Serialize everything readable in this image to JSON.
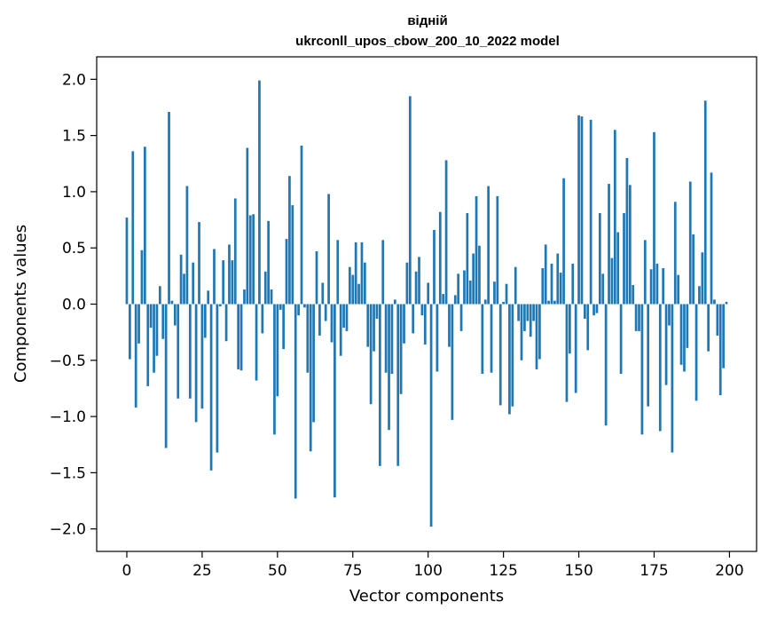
{
  "chart_data": {
    "type": "bar",
    "title": "відній",
    "subtitle": "ukrconll_upos_cbow_200_10_2022 model",
    "xlabel": "Vector components",
    "ylabel": "Components values",
    "xlim": [
      -10,
      209
    ],
    "ylim": [
      -2.2,
      2.2
    ],
    "xticks": [
      0,
      25,
      50,
      75,
      100,
      125,
      150,
      175,
      200
    ],
    "xtick_labels": [
      "0",
      "25",
      "50",
      "75",
      "100",
      "125",
      "150",
      "175",
      "200"
    ],
    "yticks": [
      -2.0,
      -1.5,
      -1.0,
      -0.5,
      0.0,
      0.5,
      1.0,
      1.5,
      2.0
    ],
    "ytick_labels": [
      "−2.0",
      "−1.5",
      "−1.0",
      "−0.5",
      "0.0",
      "0.5",
      "1.0",
      "1.5",
      "2.0"
    ],
    "grid": false,
    "color": "#1f77b4",
    "values": [
      0.77,
      -0.49,
      1.36,
      -0.92,
      -0.35,
      0.48,
      1.4,
      -0.73,
      -0.21,
      -0.61,
      -0.46,
      0.16,
      -0.31,
      -1.28,
      1.71,
      0.03,
      -0.19,
      -0.84,
      0.44,
      0.27,
      1.05,
      -0.84,
      0.37,
      -1.05,
      0.73,
      -0.93,
      -0.3,
      0.12,
      -1.48,
      0.49,
      -1.32,
      -0.02,
      0.39,
      -0.33,
      0.53,
      0.39,
      0.94,
      -0.58,
      -0.59,
      0.13,
      1.39,
      0.79,
      0.8,
      -0.68,
      1.99,
      -0.26,
      0.29,
      0.74,
      0.13,
      -1.16,
      -0.82,
      -0.05,
      -0.4,
      0.58,
      1.14,
      0.88,
      -1.73,
      -0.1,
      1.41,
      -0.03,
      -0.61,
      -1.31,
      -1.05,
      0.47,
      -0.28,
      0.19,
      -0.15,
      0.98,
      -0.34,
      -1.72,
      0.57,
      -0.46,
      -0.21,
      -0.24,
      0.33,
      0.26,
      0.55,
      0.18,
      0.55,
      0.37,
      -0.38,
      -0.89,
      -0.42,
      -0.13,
      -1.44,
      0.57,
      -0.61,
      -1.12,
      -0.62,
      0.04,
      -1.44,
      -0.8,
      -0.35,
      0.37,
      1.85,
      -0.26,
      0.29,
      0.42,
      -0.1,
      -0.36,
      0.19,
      -1.98,
      0.66,
      -0.6,
      0.82,
      0.09,
      1.28,
      -0.38,
      -1.03,
      0.08,
      0.27,
      -0.24,
      0.3,
      0.81,
      0.21,
      0.45,
      0.96,
      0.52,
      -0.62,
      0.04,
      1.05,
      -0.61,
      0.2,
      0.96,
      -0.9,
      0.02,
      0.18,
      -0.98,
      -0.91,
      0.33,
      -0.15,
      -0.5,
      -0.24,
      -0.15,
      -0.29,
      -0.15,
      -0.58,
      -0.49,
      0.32,
      0.53,
      0.03,
      0.36,
      0.03,
      0.45,
      0.28,
      1.12,
      -0.87,
      -0.44,
      0.36,
      -0.79,
      1.68,
      1.67,
      -0.13,
      -0.41,
      1.64,
      -0.1,
      -0.08,
      0.81,
      0.27,
      -1.08,
      1.07,
      0.41,
      1.55,
      0.64,
      -0.62,
      0.81,
      1.3,
      1.06,
      0.17,
      -0.24,
      -0.24,
      -1.16,
      0.57,
      -0.91,
      0.31,
      1.53,
      0.36,
      -1.13,
      0.32,
      -0.72,
      -0.19,
      -1.32,
      0.91,
      0.26,
      -0.54,
      -0.6,
      -0.39,
      1.09,
      0.62,
      -0.86,
      0.16,
      0.46,
      1.81,
      -0.42,
      1.17,
      0.04,
      -0.28,
      -0.81,
      -0.57,
      0.02
    ]
  }
}
